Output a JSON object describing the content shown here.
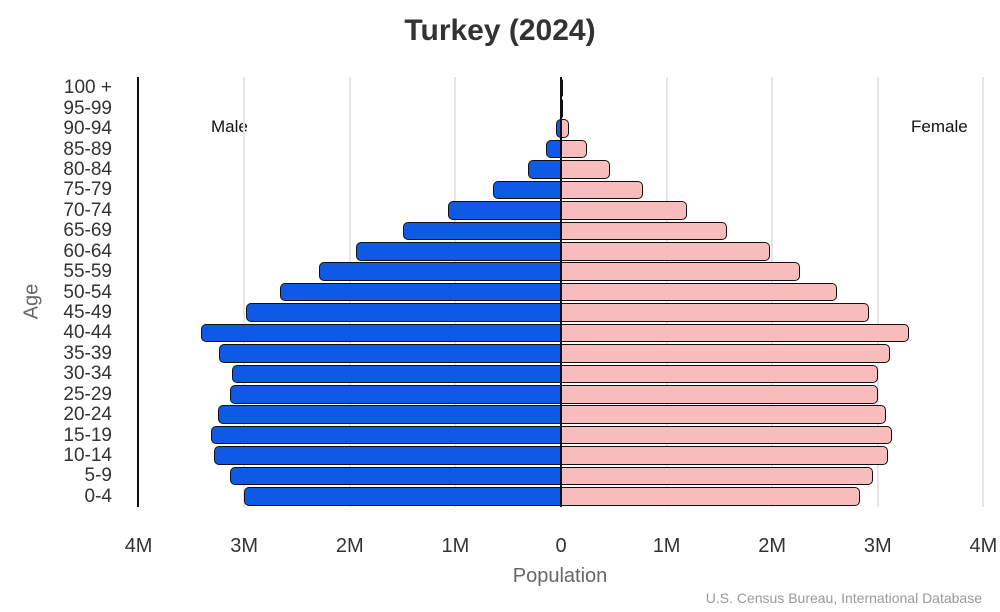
{
  "chart_data": {
    "type": "bar",
    "subtype": "population-pyramid",
    "title": "Turkey (2024)",
    "xlabel": "Population",
    "ylabel": "Age",
    "source": "U.S. Census Bureau, International Database",
    "legend": {
      "left": "Male",
      "right": "Female"
    },
    "x_ticks": [
      "4M",
      "3M",
      "2M",
      "1M",
      "0",
      "1M",
      "2M",
      "3M",
      "4M"
    ],
    "xlim": [
      -4000000,
      4000000
    ],
    "grid": true,
    "categories": [
      "0-4",
      "5-9",
      "10-14",
      "15-19",
      "20-24",
      "25-29",
      "30-34",
      "35-39",
      "40-44",
      "45-49",
      "50-54",
      "55-59",
      "60-64",
      "65-69",
      "70-74",
      "75-79",
      "80-84",
      "85-89",
      "90-94",
      "95-99",
      "100 +"
    ],
    "series": [
      {
        "name": "Male",
        "color": "#0e5ae6",
        "values": [
          3000000,
          3130000,
          3290000,
          3310000,
          3250000,
          3130000,
          3120000,
          3240000,
          3410000,
          2980000,
          2660000,
          2290000,
          1940000,
          1500000,
          1070000,
          640000,
          310000,
          140000,
          50000,
          10000,
          2000
        ]
      },
      {
        "name": "Female",
        "color": "#f8bcbc",
        "values": [
          2830000,
          2950000,
          3100000,
          3130000,
          3080000,
          3000000,
          3000000,
          3120000,
          3300000,
          2920000,
          2610000,
          2260000,
          1980000,
          1570000,
          1190000,
          780000,
          460000,
          250000,
          80000,
          15000,
          3000
        ]
      }
    ]
  },
  "labels": {
    "title": "Turkey (2024)",
    "male": "Male",
    "female": "Female",
    "xlabel": "Population",
    "ylabel": "Age",
    "source": "U.S. Census Bureau, International Database"
  }
}
